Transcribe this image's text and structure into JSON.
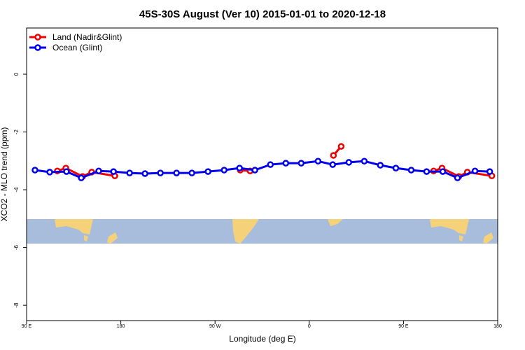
{
  "chart_data": {
    "type": "line",
    "title": "45S-30S August (Ver 10)   2015-01-01 to 2020-12-18",
    "x_label": "Longitude (deg E)",
    "y_label": "XCO2 - MLO trend (ppm)",
    "xlim": [
      90,
      540
    ],
    "ylim": [
      -8.53,
      1.6
    ],
    "xticks": [
      {
        "value": 90,
        "label": "90 E"
      },
      180,
      {
        "value": 270,
        "label": "90 W"
      },
      {
        "value": 360,
        "label": "0"
      },
      {
        "value": 450,
        "label": "90 E"
      },
      {
        "value": 540,
        "label": "180"
      }
    ],
    "yticks": [
      0,
      -2,
      -4,
      -6,
      -8
    ],
    "legend": "top-left",
    "series": [
      {
        "name": "Land (Nadir&Glint)",
        "color": "#ee0000",
        "x": [
          119.4,
          127.5,
          143.5,
          152.2,
          174.3,
          null,
          294.1,
          303.5,
          null,
          383.1,
          390.5,
          null,
          478.8,
          486.8,
          502.9,
          511.0,
          534.4
        ],
        "values": [
          -3.35,
          -3.25,
          -3.54,
          -3.39,
          -3.52,
          null,
          -3.32,
          -3.35,
          null,
          -2.81,
          -2.5,
          null,
          -3.35,
          -3.25,
          -3.54,
          -3.39,
          -3.52
        ]
      },
      {
        "name": "Ocean (Glint)",
        "color": "#0000ee",
        "x": [
          98.0,
          112.1,
          128.1,
          142.2,
          158.9,
          173.0,
          188.4,
          203.1,
          217.8,
          233.2,
          247.9,
          263.3,
          278.7,
          293.4,
          308.1,
          322.9,
          337.6,
          352.3,
          368.4,
          382.4,
          397.8,
          412.6,
          427.9,
          442.7,
          457.4,
          472.1,
          487.5,
          501.6,
          518.3,
          532.4
        ],
        "values": [
          -3.32,
          -3.39,
          -3.37,
          -3.59,
          -3.35,
          -3.37,
          -3.42,
          -3.44,
          -3.42,
          -3.42,
          -3.42,
          -3.37,
          -3.32,
          -3.25,
          -3.32,
          -3.13,
          -3.08,
          -3.08,
          -3.01,
          -3.13,
          -3.05,
          -3.01,
          -3.15,
          -3.25,
          -3.32,
          -3.37,
          -3.37,
          -3.59,
          -3.35,
          -3.37
        ]
      }
    ]
  }
}
